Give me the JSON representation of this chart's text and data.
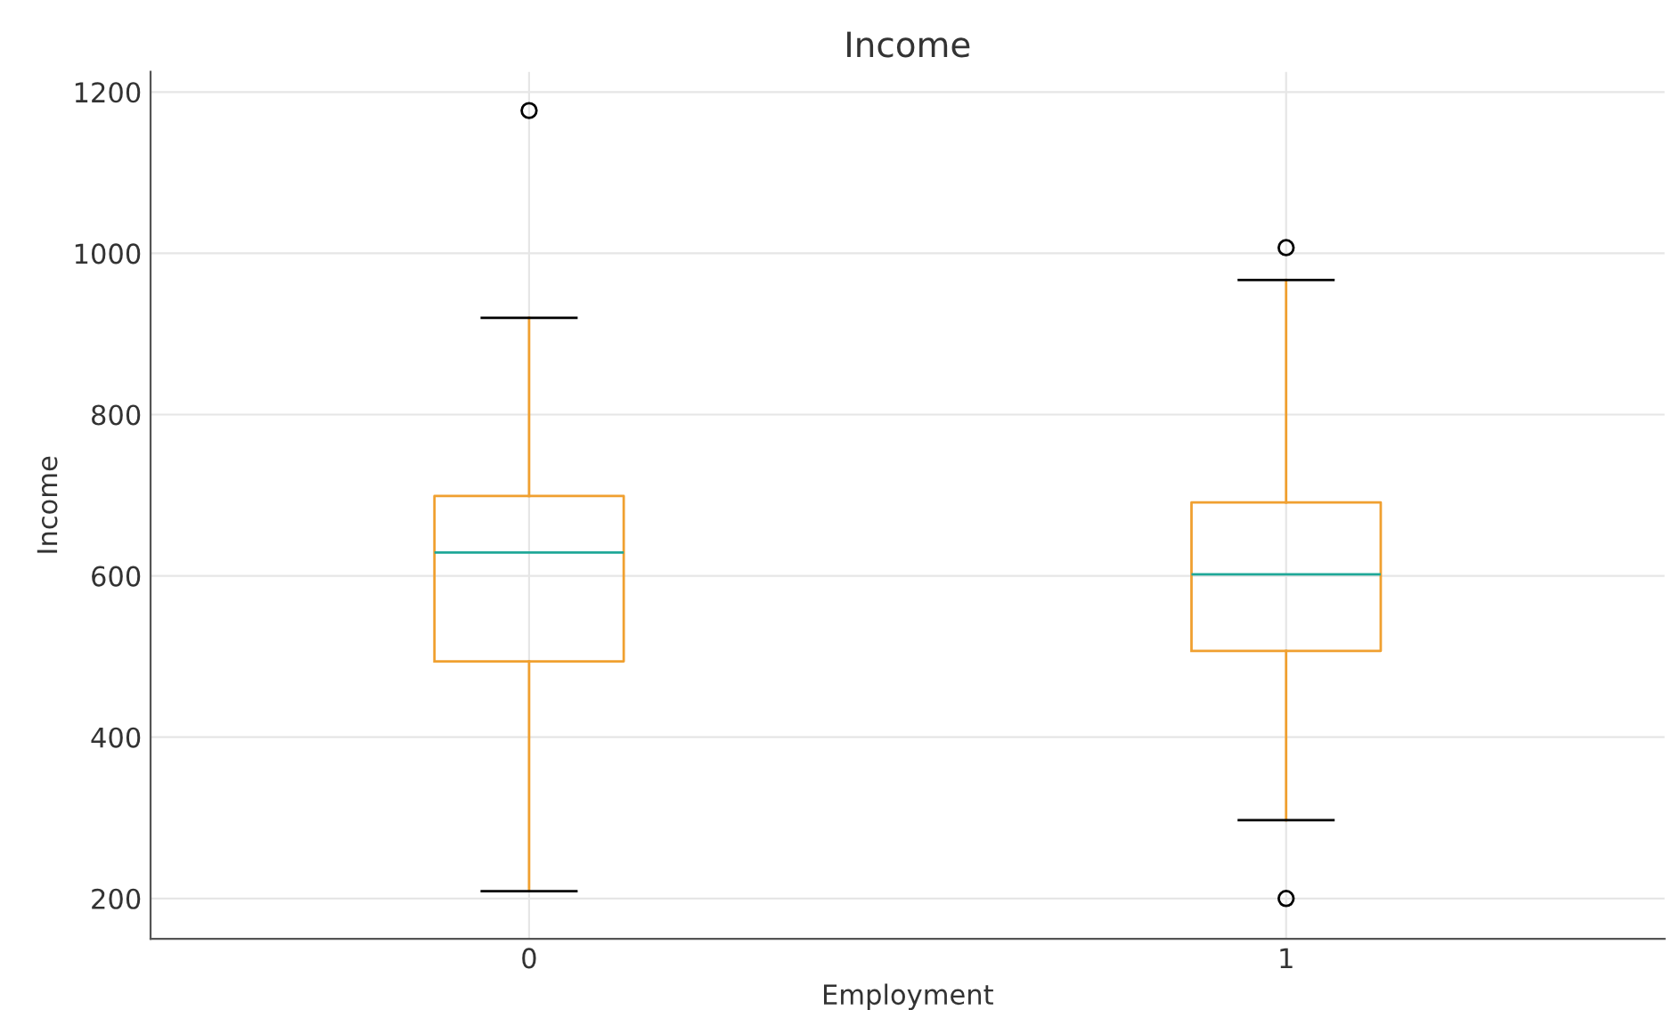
{
  "chart_data": {
    "type": "box",
    "title": "Income",
    "xlabel": "Employment",
    "ylabel": "Income",
    "categories": [
      "0",
      "1"
    ],
    "boxes": [
      {
        "low": 209,
        "q1": 494,
        "median": 629,
        "q3": 699,
        "high": 920,
        "outliers": [
          1177
        ]
      },
      {
        "low": 297,
        "q1": 507,
        "median": 602,
        "q3": 691,
        "high": 967,
        "outliers": [
          1007,
          200
        ]
      }
    ],
    "color": "#f0a030",
    "ylim": [
      150,
      1225
    ],
    "yticks": [
      200,
      400,
      600,
      800,
      1000,
      1200
    ],
    "grid": true
  }
}
